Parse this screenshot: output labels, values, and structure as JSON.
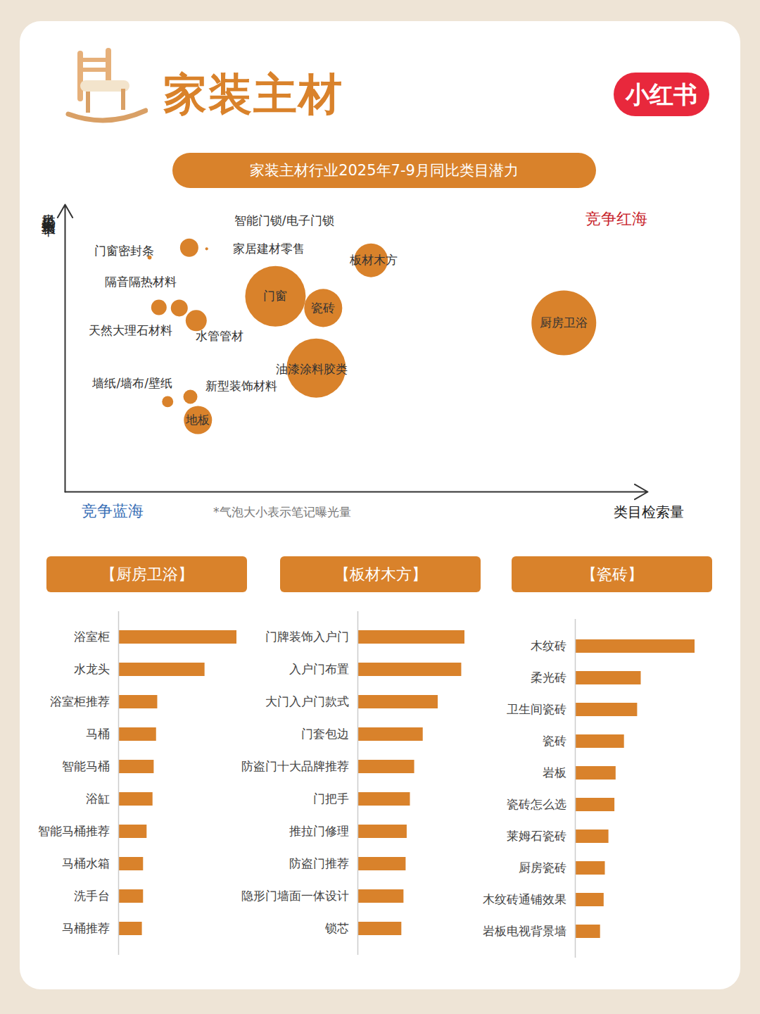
{
  "header": {
    "title": "家装主材",
    "logo": "小红书"
  },
  "chart_data": [
    {
      "type": "scatter",
      "title": "家装主材行业2025年7-9月同比类目潜力",
      "x_label": "类目检索量",
      "y_label": "类目检索增长率",
      "labels": [
        "门窗密封条",
        "智能门锁/电子门锁",
        "家居建材零售",
        "板材木方",
        "门窗",
        "瓷砖",
        "厨房卫浴",
        "隔音隔热材料",
        "天然大理石材料",
        "水管管材",
        "油漆涂料胶类",
        "墙纸/墙布/壁纸",
        "新型装饰材料",
        "地板"
      ],
      "x": [
        14.5,
        21.3,
        24.3,
        52.5,
        36.1,
        44.3,
        85.6,
        16.1,
        19.6,
        22.5,
        43.1,
        17.6,
        21.5,
        22.8
      ],
      "y": [
        81.6,
        85.0,
        84.6,
        80.6,
        68.1,
        64.0,
        58.8,
        64.2,
        64.0,
        59.6,
        43.1,
        31.4,
        33.1,
        25.0
      ],
      "sizes": [
        0.4,
        8.0,
        0.2,
        27.2,
        87.4,
        34.5,
        100,
        5.7,
        6.8,
        10.6,
        83.4,
        3.0,
        4.7,
        18.9
      ],
      "size_note": "*气泡大小表示笔记曝光量",
      "annotations": [
        {
          "text": "竞争红海",
          "color": "#c8242c"
        },
        {
          "text": "竞争蓝海",
          "color": "#3a6fb6"
        }
      ],
      "xlim": [
        0,
        100
      ],
      "ylim": [
        0,
        100
      ],
      "tick_labels": false,
      "color": "#d9822b"
    },
    {
      "type": "bar",
      "orientation": "horizontal",
      "title": "【厨房卫浴】",
      "categories": [
        "浴室柜",
        "水龙头",
        "浴室柜推荐",
        "马桶",
        "智能马桶",
        "浴缸",
        "智能马桶推荐",
        "马桶水箱",
        "洗手台",
        "马桶推荐"
      ],
      "values": [
        100,
        73,
        33,
        32,
        30,
        29,
        24,
        21,
        21,
        20
      ],
      "xlim": [
        0,
        100
      ],
      "tick_labels": "y",
      "color": "#d9822b"
    },
    {
      "type": "bar",
      "orientation": "horizontal",
      "title": "【板材木方】",
      "categories": [
        "门牌装饰入户门",
        "入户门布置",
        "大门入户门款式",
        "门套包边",
        "防盗门十大品牌推荐",
        "门把手",
        "推拉门修理",
        "防盗门推荐",
        "隐形门墙面一体设计",
        "锁芯"
      ],
      "values": [
        100,
        97,
        75,
        61,
        53,
        49,
        46,
        45,
        43,
        41
      ],
      "xlim": [
        0,
        100
      ],
      "tick_labels": "y",
      "color": "#d9822b"
    },
    {
      "type": "bar",
      "orientation": "horizontal",
      "title": "【瓷砖】",
      "categories": [
        "木纹砖",
        "柔光砖",
        "卫生间瓷砖",
        "瓷砖",
        "岩板",
        "瓷砖怎么选",
        "莱姆石瓷砖",
        "厨房瓷砖",
        "木纹砖通铺效果",
        "岩板电视背景墙"
      ],
      "values": [
        100,
        55,
        52,
        41,
        34,
        33,
        28,
        25,
        24,
        21
      ],
      "xlim": [
        0,
        100
      ],
      "tick_labels": "y",
      "color": "#d9822b"
    }
  ]
}
